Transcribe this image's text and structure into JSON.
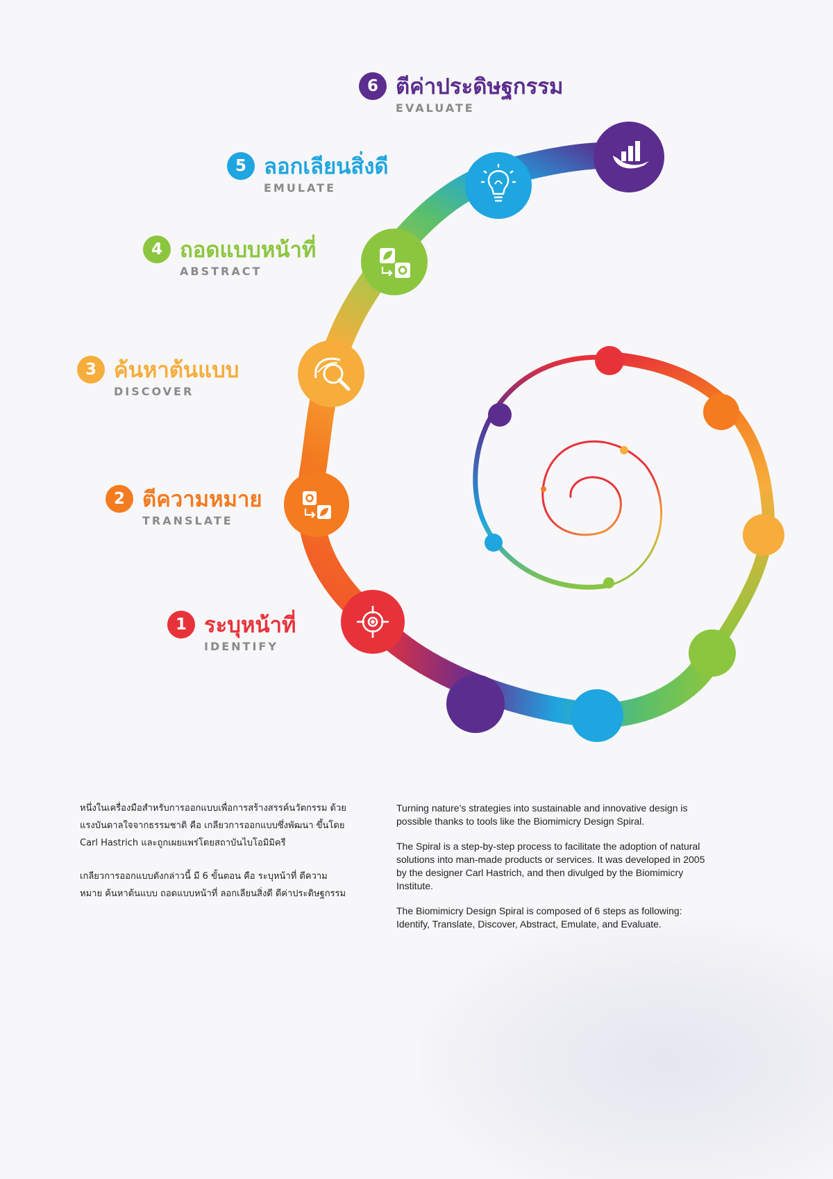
{
  "colors": {
    "red": "#e8323a",
    "orange": "#f47b20",
    "yellow": "#f6ad3c",
    "green": "#8cc63f",
    "blue": "#1fa5e0",
    "purple": "#5b2d8e"
  },
  "steps": [
    {
      "number": "1",
      "title": "ระบุหน้าที่",
      "subtitle": "IDENTIFY",
      "color": "#e8323a",
      "icon": "target-icon"
    },
    {
      "number": "2",
      "title": "ตีความหมาย",
      "subtitle": "TRANSLATE",
      "color": "#f47b20",
      "icon": "gear-leaf-exchange-icon"
    },
    {
      "number": "3",
      "title": "ค้นหาต้นแบบ",
      "subtitle": "DISCOVER",
      "color": "#f6ad3c",
      "icon": "leaf-magnifier-icon"
    },
    {
      "number": "4",
      "title": "ถอดแบบหน้าที่",
      "subtitle": "ABSTRACT",
      "color": "#8cc63f",
      "icon": "leaf-gear-exchange-icon"
    },
    {
      "number": "5",
      "title": "ลอกเลียนสิ่งดี",
      "subtitle": "EMULATE",
      "color": "#1fa5e0",
      "icon": "lightbulb-icon"
    },
    {
      "number": "6",
      "title": "ตีค่าประดิษฐกรรม",
      "subtitle": "EVALUATE",
      "color": "#5b2d8e",
      "icon": "hand-chart-icon"
    }
  ],
  "thai_text": {
    "p1": "หนึ่งในเครื่องมือสำหรับการออกแบบเพื่อการสร้างสรรค์นวัตกรรม ด้วยแรงบันดาลใจจากธรรมชาติ คือ เกลียวการออกแบบซึ่งพัฒนา ขึ้นโดย Carl Hastrich และถูกเผยแพร่โดยสถาบันไบโอมิมิครี",
    "p2": "เกลียวการออกแบบดังกล่าวนี้ มี 6 ขั้นตอน คือ ระบุหน้าที่ ตีความหมาย ค้นหาต้นแบบ ถอดแบบหน้าที่ ลอกเลียนสิ่งดี ตีค่าประดิษฐกรรม"
  },
  "english_text": {
    "p1": "Turning nature’s strategies into sustainable and innovative design is possible thanks to tools like the Biomimicry Design Spiral.",
    "p2": "The Spiral is a step-by-step process to facilitate the adoption of natural solutions into man-made products or services. It was developed in 2005 by the designer Carl Hastrich, and then divulged by the Biomimicry Institute.",
    "p3": "The Biomimicry Design Spiral is composed of 6 steps as following: Identify, Translate, Discover, Abstract, Emulate, and Evaluate."
  }
}
